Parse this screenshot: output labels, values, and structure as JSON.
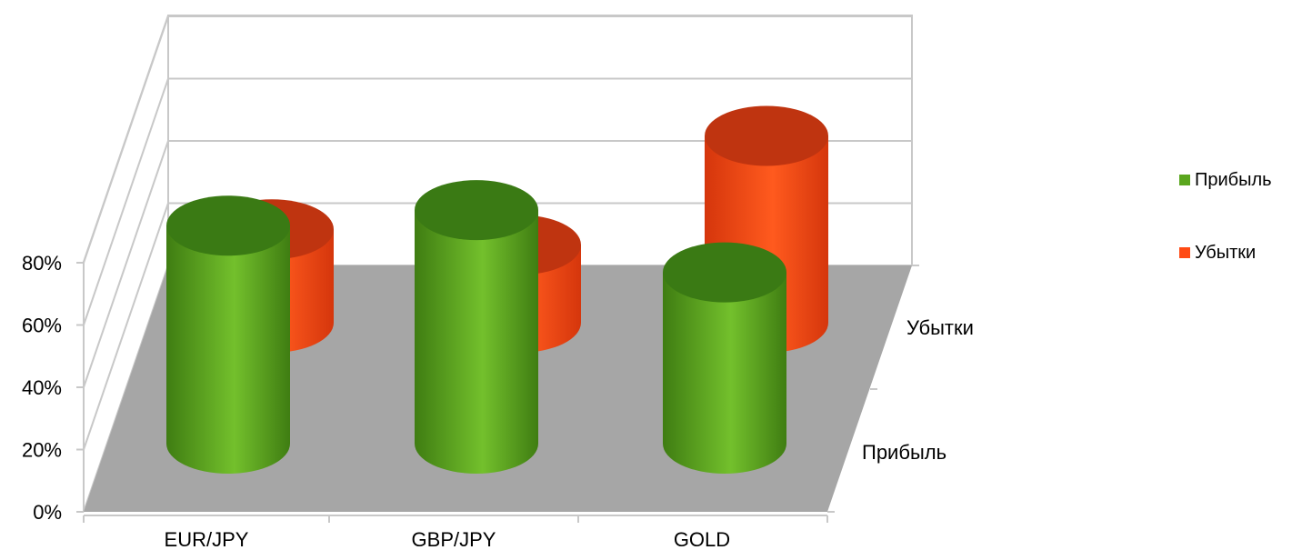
{
  "chart_data": {
    "type": "bar",
    "subtype": "3d-cylinder",
    "title": "",
    "xlabel": "",
    "ylabel": "",
    "categories": [
      "EUR/JPY",
      "GBP/JPY",
      "GOLD"
    ],
    "series": [
      {
        "name": "Прибыль",
        "values": [
          70,
          75,
          55
        ],
        "color": "#5aa61e"
      },
      {
        "name": "Убытки",
        "values": [
          30,
          25,
          60
        ],
        "color": "#ff4a14"
      }
    ],
    "ylim": [
      0,
      80
    ],
    "yticks": [
      "0%",
      "20%",
      "40%",
      "60%",
      "80%"
    ],
    "depth_labels": [
      "Прибыль",
      "Убытки"
    ],
    "grid": true,
    "floor_color": "#a6a6a6",
    "legend": {
      "position": "right",
      "entries": [
        "Прибыль",
        "Убытки"
      ]
    }
  }
}
